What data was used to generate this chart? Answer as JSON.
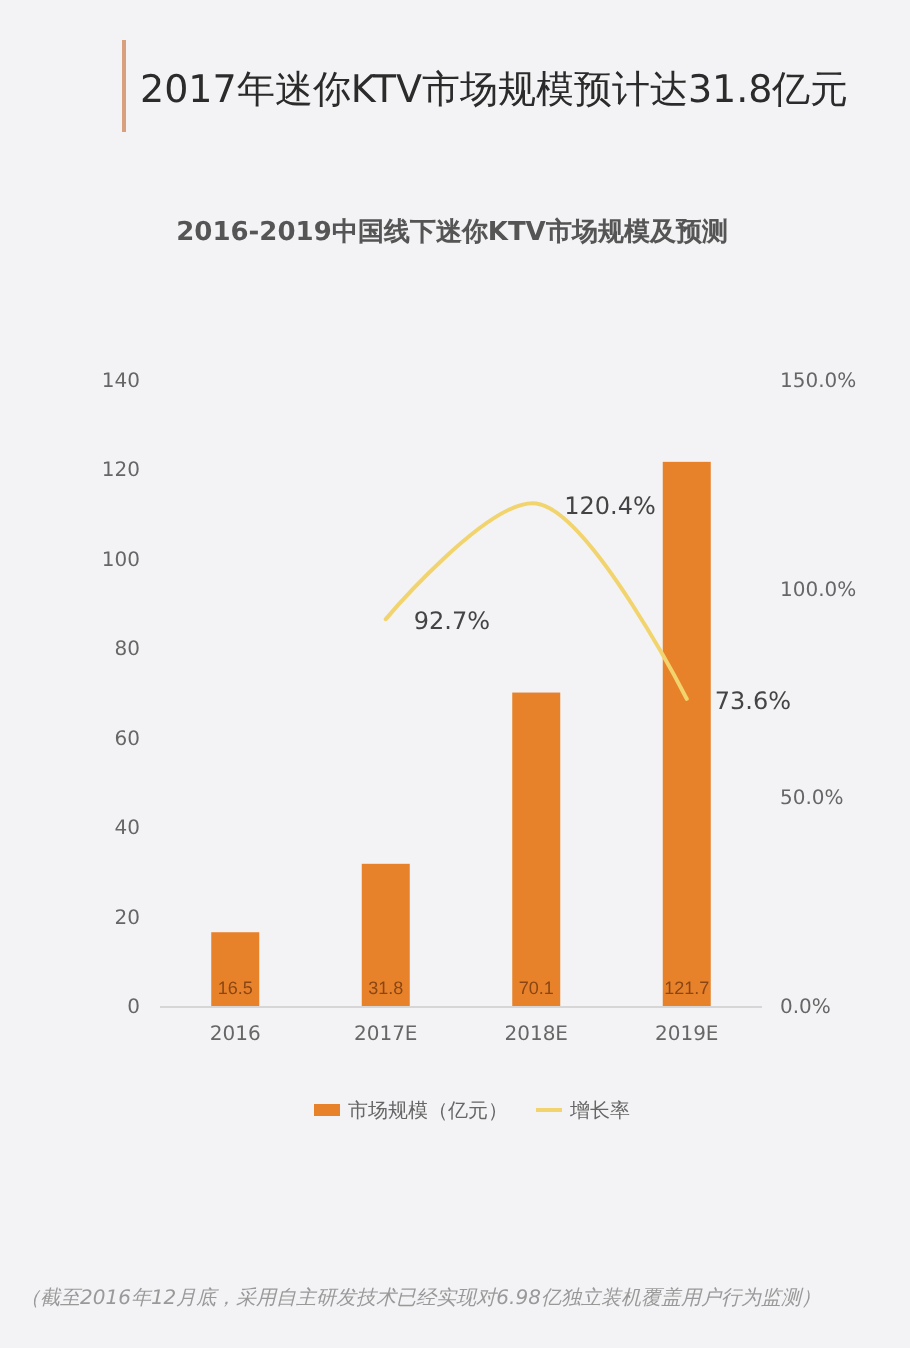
{
  "chart_data": {
    "type": "bar",
    "title": "2017年迷你KTV市场规模预计达31.8亿元",
    "subtitle": "2016-2019中国线下迷你KTV市场规模及预测",
    "categories": [
      "2016",
      "2017E",
      "2018E",
      "2019E"
    ],
    "series": [
      {
        "name": "市场规模（亿元）",
        "color": "#e8822a",
        "values": [
          16.5,
          31.8,
          70.1,
          121.7
        ],
        "value_labels": [
          "16.5",
          "31.8",
          "70.1",
          "121.7"
        ]
      },
      {
        "name": "增长率",
        "type": "line",
        "axis": "y2",
        "color": "#f2d46e",
        "values": [
          null,
          92.7,
          120.4,
          73.6
        ],
        "value_labels": [
          null,
          "92.7%",
          "120.4%",
          "73.6%"
        ]
      }
    ],
    "ylim": [
      0,
      140
    ],
    "yticks": [
      0,
      20,
      40,
      60,
      80,
      100,
      120,
      140
    ],
    "y2lim": [
      0,
      150
    ],
    "y2ticks": [
      {
        "value": 0,
        "label": "0.0%"
      },
      {
        "value": 50,
        "label": "50.0%"
      },
      {
        "value": 100,
        "label": "100.0%"
      },
      {
        "value": 150,
        "label": "150.0%"
      }
    ],
    "legend": "bottom",
    "marker": "none",
    "annotations": [
      "（截至2016年12月底，采用自主研发技术已经实现对6.98亿独立装机覆盖用户行为监测）"
    ]
  }
}
